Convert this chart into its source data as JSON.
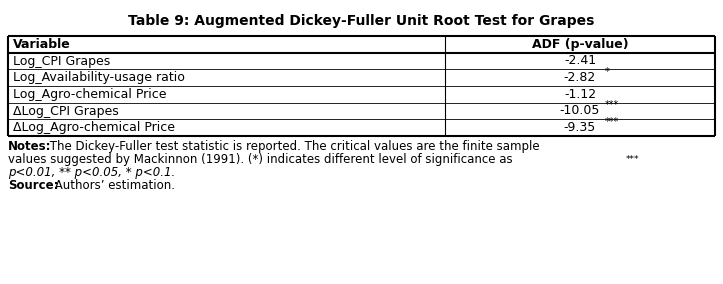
{
  "title": "Table 9: Augmented Dickey-Fuller Unit Root Test for Grapes",
  "col_headers": [
    "Variable",
    "ADF (p-value)"
  ],
  "rows": [
    [
      "Log_CPI Grapes",
      "-2.41",
      ""
    ],
    [
      "Log_Availability-usage ratio",
      "-2.82",
      "*"
    ],
    [
      "Log_Agro-chemical Price",
      "-1.12",
      ""
    ],
    [
      "ΔLog_CPI Grapes",
      "-10.05",
      "***"
    ],
    [
      "ΔLog_Agro-chemical Price",
      "-9.35",
      "***"
    ]
  ],
  "notes_bold": "Notes:",
  "notes_line1": " The Dickey-Fuller test statistic is reported. The critical values are the finite sample",
  "notes_line2_pre": "values suggested by Mackinnon (1991). (*) indicates different level of significance as ",
  "notes_line2_stars": "***",
  "notes_line3": "p<0.01, ** p<0.05, * p<0.1.",
  "source_bold": "Source:",
  "source_text": " Authors’ estimation.",
  "bg_color": "#ffffff",
  "border_color": "#000000",
  "font_color": "#000000",
  "title_fontsize": 10,
  "table_fontsize": 9,
  "notes_fontsize": 8.5
}
